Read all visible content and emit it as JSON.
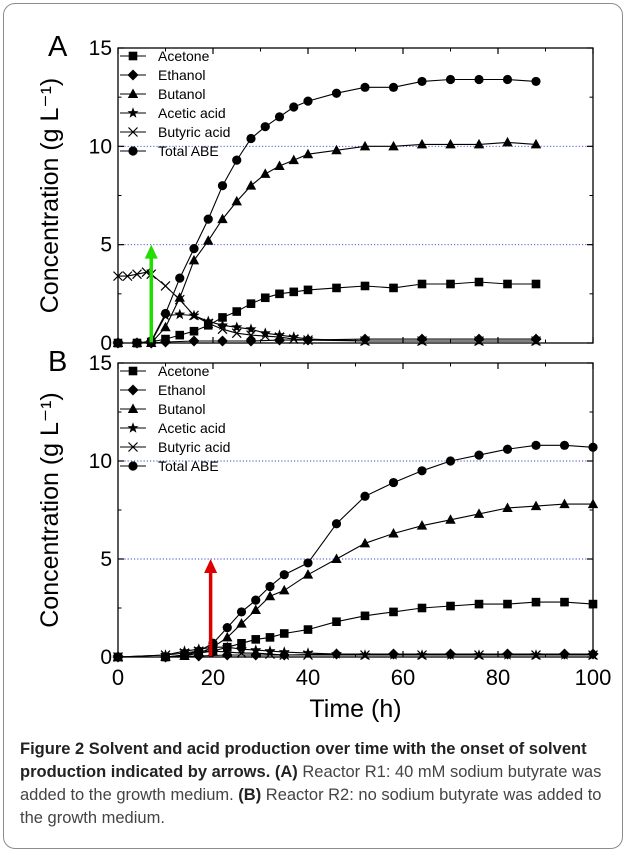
{
  "chart_data": [
    {
      "type": "line",
      "panel_label": "A",
      "xlabel": "",
      "ylabel": "Concentration (g L⁻¹)",
      "xlim": [
        0,
        100
      ],
      "ylim": [
        0,
        15
      ],
      "xticks": [
        0,
        20,
        40,
        60,
        80,
        100
      ],
      "yticks": [
        0,
        5,
        10,
        15
      ],
      "reference_lines": [
        5,
        10
      ],
      "legend_position": "top-left",
      "arrow": {
        "x": 7,
        "y_from": 0,
        "y_to": 5,
        "color": "#22dd00"
      },
      "series": [
        {
          "name": "Acetone",
          "marker": "square",
          "x": [
            0,
            4,
            7,
            10,
            13,
            16,
            19,
            22,
            25,
            28,
            31,
            34,
            37,
            40,
            46,
            52,
            58,
            64,
            70,
            76,
            82,
            88
          ],
          "y": [
            0,
            0,
            0.05,
            0.2,
            0.4,
            0.6,
            0.9,
            1.3,
            1.6,
            2.0,
            2.3,
            2.5,
            2.6,
            2.7,
            2.8,
            2.9,
            2.8,
            3.0,
            3.0,
            3.1,
            3.0,
            3.0
          ]
        },
        {
          "name": "Ethanol",
          "marker": "diamond",
          "x": [
            0,
            4,
            7,
            10,
            16,
            22,
            28,
            34,
            40,
            52,
            64,
            76,
            88
          ],
          "y": [
            0,
            0,
            0,
            0.05,
            0.1,
            0.1,
            0.1,
            0.15,
            0.15,
            0.2,
            0.2,
            0.2,
            0.2
          ]
        },
        {
          "name": "Butanol",
          "marker": "triangle",
          "x": [
            0,
            4,
            7,
            10,
            13,
            16,
            19,
            22,
            25,
            28,
            31,
            34,
            37,
            40,
            46,
            52,
            58,
            64,
            70,
            76,
            82,
            88
          ],
          "y": [
            0,
            0,
            0,
            0.8,
            2.3,
            4.2,
            5.2,
            6.3,
            7.2,
            8.0,
            8.6,
            9.0,
            9.3,
            9.6,
            9.8,
            10.0,
            10.0,
            10.1,
            10.1,
            10.1,
            10.2,
            10.1
          ]
        },
        {
          "name": "Acetic acid",
          "marker": "star",
          "x": [
            0,
            4,
            7,
            10,
            13,
            16,
            19,
            22,
            25,
            28,
            31,
            34,
            37,
            40,
            52,
            64,
            76,
            88
          ],
          "y": [
            0,
            0,
            0.05,
            1.4,
            1.45,
            1.4,
            1.1,
            0.9,
            0.8,
            0.7,
            0.5,
            0.4,
            0.3,
            0.2,
            0.1,
            0.1,
            0.1,
            0.1
          ]
        },
        {
          "name": "Butyric acid",
          "marker": "x",
          "x": [
            0,
            2,
            4,
            6,
            7,
            10,
            13,
            16,
            19,
            22,
            25,
            28,
            31,
            34,
            37,
            40,
            52,
            64,
            76,
            88
          ],
          "y": [
            3.4,
            3.4,
            3.5,
            3.6,
            3.5,
            2.9,
            2.2,
            1.4,
            1.0,
            0.7,
            0.5,
            0.4,
            0.35,
            0.3,
            0.2,
            0.15,
            0.1,
            0.1,
            0.1,
            0.1
          ]
        },
        {
          "name": "Total ABE",
          "marker": "circle",
          "x": [
            0,
            4,
            7,
            10,
            13,
            16,
            19,
            22,
            25,
            28,
            31,
            34,
            37,
            40,
            46,
            52,
            58,
            64,
            70,
            76,
            82,
            88
          ],
          "y": [
            0,
            0,
            0.1,
            1.5,
            3.3,
            4.8,
            6.3,
            8.0,
            9.3,
            10.4,
            11.0,
            11.5,
            12.0,
            12.3,
            12.7,
            13.0,
            13.0,
            13.3,
            13.4,
            13.4,
            13.4,
            13.3
          ]
        }
      ]
    },
    {
      "type": "line",
      "panel_label": "B",
      "xlabel": "Time (h)",
      "ylabel": "Concentration (g L⁻¹)",
      "xlim": [
        0,
        100
      ],
      "ylim": [
        0,
        15
      ],
      "xticks": [
        0,
        20,
        40,
        60,
        80,
        100
      ],
      "yticks": [
        0,
        5,
        10,
        15
      ],
      "reference_lines": [
        5,
        10
      ],
      "legend_position": "top-left",
      "arrow": {
        "x": 19.5,
        "y_from": 0,
        "y_to": 5,
        "color": "#dd0000"
      },
      "series": [
        {
          "name": "Acetone",
          "marker": "square",
          "x": [
            0,
            10,
            14,
            17,
            20,
            23,
            26,
            29,
            32,
            35,
            40,
            46,
            52,
            58,
            64,
            70,
            76,
            82,
            88,
            94,
            100
          ],
          "y": [
            0,
            0,
            0.1,
            0.2,
            0.3,
            0.5,
            0.7,
            0.9,
            1.0,
            1.2,
            1.4,
            1.8,
            2.1,
            2.3,
            2.5,
            2.6,
            2.7,
            2.7,
            2.8,
            2.8,
            2.7
          ]
        },
        {
          "name": "Ethanol",
          "marker": "diamond",
          "x": [
            0,
            10,
            17,
            23,
            29,
            35,
            46,
            58,
            70,
            82,
            94,
            100
          ],
          "y": [
            0,
            0,
            0.05,
            0.1,
            0.1,
            0.1,
            0.15,
            0.15,
            0.15,
            0.15,
            0.15,
            0.15
          ]
        },
        {
          "name": "Butanol",
          "marker": "triangle",
          "x": [
            0,
            10,
            14,
            17,
            20,
            23,
            26,
            29,
            32,
            35,
            40,
            46,
            52,
            58,
            64,
            70,
            76,
            82,
            88,
            94,
            100
          ],
          "y": [
            0,
            0,
            0.05,
            0.2,
            0.5,
            1.0,
            1.7,
            2.4,
            3.1,
            3.4,
            4.2,
            5.0,
            5.8,
            6.3,
            6.7,
            7.0,
            7.3,
            7.6,
            7.7,
            7.8,
            7.8
          ]
        },
        {
          "name": "Acetic acid",
          "marker": "star",
          "x": [
            0,
            10,
            14,
            17,
            20,
            23,
            26,
            29,
            32,
            35,
            40,
            46,
            52,
            58,
            64,
            70,
            76,
            82,
            88,
            94,
            100
          ],
          "y": [
            0,
            0.1,
            0.3,
            0.4,
            0.5,
            0.5,
            0.4,
            0.35,
            0.3,
            0.25,
            0.2,
            0.15,
            0.1,
            0.1,
            0.1,
            0.1,
            0.1,
            0.1,
            0.1,
            0.1,
            0.1
          ]
        },
        {
          "name": "Butyric acid",
          "marker": "x",
          "x": [
            0,
            10,
            14,
            17,
            20,
            23,
            26,
            29,
            32,
            35,
            40,
            52,
            64,
            76,
            88,
            100
          ],
          "y": [
            0,
            0.1,
            0.2,
            0.3,
            0.3,
            0.25,
            0.2,
            0.2,
            0.15,
            0.1,
            0.1,
            0.1,
            0.1,
            0.1,
            0.1,
            0.1
          ]
        },
        {
          "name": "Total ABE",
          "marker": "circle",
          "x": [
            0,
            10,
            14,
            17,
            20,
            23,
            26,
            29,
            32,
            35,
            40,
            46,
            52,
            58,
            64,
            70,
            76,
            82,
            88,
            94,
            100
          ],
          "y": [
            0,
            0,
            0.1,
            0.3,
            0.7,
            1.5,
            2.3,
            2.9,
            3.6,
            4.2,
            4.8,
            6.8,
            8.2,
            8.9,
            9.5,
            10.0,
            10.3,
            10.6,
            10.8,
            10.8,
            10.7
          ]
        }
      ]
    }
  ],
  "caption": {
    "lead": "Figure 2 Solvent and acid production over time with the onset of solvent production indicated by arrows.",
    "a_label": "(A)",
    "a_text": " Reactor R1: 40 mM sodium butyrate was added to the growth medium. ",
    "b_label": "(B)",
    "b_text": " Reactor R2: no sodium butyrate was added to the growth medium."
  }
}
